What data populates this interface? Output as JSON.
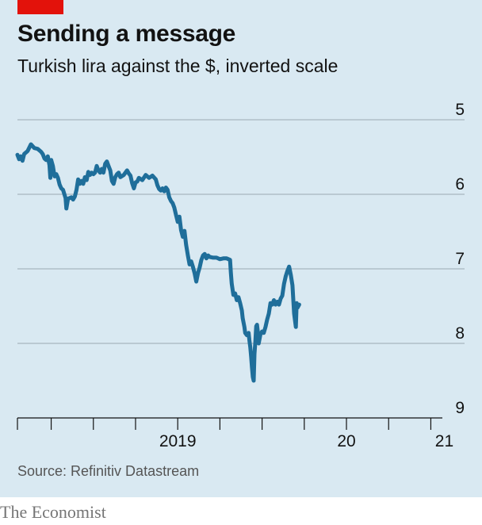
{
  "header": {
    "title": "Sending a message",
    "subtitle": "Turkish lira against the $, inverted scale"
  },
  "footer": {
    "source": "Source: Refinitiv Datastream",
    "brand": "The Economist"
  },
  "colors": {
    "background": "#d9e9f2",
    "line": "#1f6e9a",
    "accent_tag": "#e3120b",
    "gridline": "#9aa9b2"
  },
  "chart_data": {
    "type": "line",
    "title": "Sending a message",
    "subtitle": "Turkish lira against the $, inverted scale",
    "xlabel": "",
    "ylabel": "",
    "y_inverted": true,
    "ylim": [
      5,
      9
    ],
    "y_ticks": [
      5,
      6,
      7,
      8,
      9
    ],
    "x_ticks": [
      {
        "value": 2019.0,
        "label": "2019"
      },
      {
        "value": 2020.0,
        "label": "20"
      },
      {
        "value": 2021.0,
        "label": "21"
      }
    ],
    "xlim": [
      2018.55,
      2021.2
    ],
    "grid": true,
    "series": [
      {
        "values": [
          [
            2018.55,
            5.47
          ],
          [
            2018.56,
            5.53
          ],
          [
            2018.57,
            5.49
          ],
          [
            2018.58,
            5.55
          ],
          [
            2018.59,
            5.46
          ],
          [
            2018.61,
            5.42
          ],
          [
            2018.63,
            5.33
          ],
          [
            2018.65,
            5.38
          ],
          [
            2018.67,
            5.39
          ],
          [
            2018.69,
            5.43
          ],
          [
            2018.7,
            5.46
          ],
          [
            2018.71,
            5.52
          ],
          [
            2018.72,
            5.54
          ],
          [
            2018.73,
            5.49
          ],
          [
            2018.74,
            5.61
          ],
          [
            2018.745,
            5.78
          ],
          [
            2018.75,
            5.54
          ],
          [
            2018.76,
            5.62
          ],
          [
            2018.77,
            5.76
          ],
          [
            2018.78,
            5.73
          ],
          [
            2018.79,
            5.78
          ],
          [
            2018.8,
            5.87
          ],
          [
            2018.81,
            5.92
          ],
          [
            2018.82,
            5.94
          ],
          [
            2018.835,
            6.05
          ],
          [
            2018.84,
            6.19
          ],
          [
            2018.85,
            6.06
          ],
          [
            2018.87,
            6.04
          ],
          [
            2018.88,
            6.07
          ],
          [
            2018.89,
            6.03
          ],
          [
            2018.9,
            5.94
          ],
          [
            2018.91,
            5.8
          ],
          [
            2018.92,
            5.86
          ],
          [
            2018.93,
            5.82
          ],
          [
            2018.94,
            5.86
          ],
          [
            2018.95,
            5.77
          ],
          [
            2018.96,
            5.81
          ],
          [
            2018.97,
            5.7
          ],
          [
            2018.98,
            5.74
          ],
          [
            2018.99,
            5.71
          ],
          [
            2019.0,
            5.73
          ],
          [
            2019.01,
            5.71
          ],
          [
            2019.02,
            5.62
          ],
          [
            2019.03,
            5.68
          ],
          [
            2019.04,
            5.71
          ],
          [
            2019.05,
            5.66
          ],
          [
            2019.06,
            5.71
          ],
          [
            2019.07,
            5.59
          ],
          [
            2019.08,
            5.56
          ],
          [
            2019.09,
            5.62
          ],
          [
            2019.1,
            5.68
          ],
          [
            2019.11,
            5.82
          ],
          [
            2019.12,
            5.86
          ],
          [
            2019.13,
            5.77
          ],
          [
            2019.14,
            5.73
          ],
          [
            2019.15,
            5.71
          ],
          [
            2019.16,
            5.77
          ],
          [
            2019.18,
            5.74
          ],
          [
            2019.2,
            5.68
          ],
          [
            2019.21,
            5.72
          ],
          [
            2019.22,
            5.75
          ],
          [
            2019.23,
            5.85
          ],
          [
            2019.24,
            5.92
          ],
          [
            2019.25,
            5.84
          ],
          [
            2019.26,
            5.83
          ],
          [
            2019.27,
            5.78
          ],
          [
            2019.29,
            5.81
          ],
          [
            2019.31,
            5.74
          ],
          [
            2019.33,
            5.78
          ],
          [
            2019.35,
            5.75
          ],
          [
            2019.37,
            5.8
          ],
          [
            2019.38,
            5.88
          ],
          [
            2019.39,
            5.93
          ],
          [
            2019.4,
            5.95
          ],
          [
            2019.41,
            5.92
          ],
          [
            2019.42,
            5.96
          ],
          [
            2019.43,
            5.91
          ],
          [
            2019.44,
            5.94
          ],
          [
            2019.45,
            6.04
          ],
          [
            2019.46,
            6.09
          ],
          [
            2019.47,
            6.12
          ],
          [
            2019.48,
            6.18
          ],
          [
            2019.49,
            6.28
          ],
          [
            2019.5,
            6.37
          ],
          [
            2019.51,
            6.3
          ],
          [
            2019.52,
            6.48
          ],
          [
            2019.53,
            6.57
          ],
          [
            2019.54,
            6.49
          ],
          [
            2019.55,
            6.68
          ],
          [
            2019.56,
            6.82
          ],
          [
            2019.57,
            6.94
          ],
          [
            2019.58,
            6.9
          ],
          [
            2019.59,
            6.97
          ],
          [
            2019.6,
            7.06
          ],
          [
            2019.61,
            7.17
          ],
          [
            2019.62,
            7.06
          ],
          [
            2019.63,
            6.98
          ],
          [
            2019.64,
            6.88
          ],
          [
            2019.65,
            6.82
          ],
          [
            2019.66,
            6.8
          ],
          [
            2019.67,
            6.86
          ],
          [
            2019.68,
            6.82
          ],
          [
            2019.69,
            6.84
          ],
          [
            2019.71,
            6.85
          ],
          [
            2019.73,
            6.85
          ],
          [
            2019.75,
            6.87
          ],
          [
            2019.77,
            6.86
          ],
          [
            2019.79,
            6.86
          ],
          [
            2019.81,
            6.88
          ],
          [
            2019.815,
            7.05
          ],
          [
            2019.82,
            7.2
          ],
          [
            2019.83,
            7.35
          ],
          [
            2019.84,
            7.33
          ],
          [
            2019.85,
            7.42
          ],
          [
            2019.86,
            7.38
          ],
          [
            2019.87,
            7.46
          ],
          [
            2019.88,
            7.56
          ],
          [
            2019.885,
            7.66
          ],
          [
            2019.89,
            7.72
          ],
          [
            2019.895,
            7.78
          ],
          [
            2019.9,
            7.86
          ],
          [
            2019.91,
            7.89
          ],
          [
            2019.92,
            7.86
          ],
          [
            2019.925,
            7.96
          ],
          [
            2019.93,
            8.05
          ],
          [
            2019.935,
            8.18
          ],
          [
            2019.94,
            8.32
          ],
          [
            2019.945,
            8.45
          ],
          [
            2019.95,
            8.5
          ],
          [
            2019.955,
            8.14
          ],
          [
            2019.96,
            7.98
          ],
          [
            2019.965,
            7.77
          ],
          [
            2019.97,
            7.75
          ],
          [
            2019.975,
            7.85
          ],
          [
            2019.98,
            8.0
          ],
          [
            2019.99,
            7.88
          ],
          [
            2020.0,
            7.84
          ],
          [
            2020.01,
            7.86
          ],
          [
            2020.02,
            7.78
          ],
          [
            2020.03,
            7.68
          ],
          [
            2020.04,
            7.6
          ],
          [
            2020.05,
            7.46
          ],
          [
            2020.06,
            7.48
          ],
          [
            2020.07,
            7.42
          ],
          [
            2020.08,
            7.48
          ],
          [
            2020.09,
            7.44
          ],
          [
            2020.1,
            7.48
          ],
          [
            2020.11,
            7.4
          ],
          [
            2020.12,
            7.36
          ],
          [
            2020.13,
            7.2
          ],
          [
            2020.14,
            7.1
          ],
          [
            2020.15,
            7.03
          ],
          [
            2020.16,
            6.97
          ],
          [
            2020.17,
            7.08
          ],
          [
            2020.18,
            7.22
          ],
          [
            2020.19,
            7.6
          ],
          [
            2020.2,
            7.78
          ],
          [
            2020.205,
            7.46
          ],
          [
            2020.21,
            7.52
          ],
          [
            2020.22,
            7.48
          ]
        ]
      }
    ]
  }
}
